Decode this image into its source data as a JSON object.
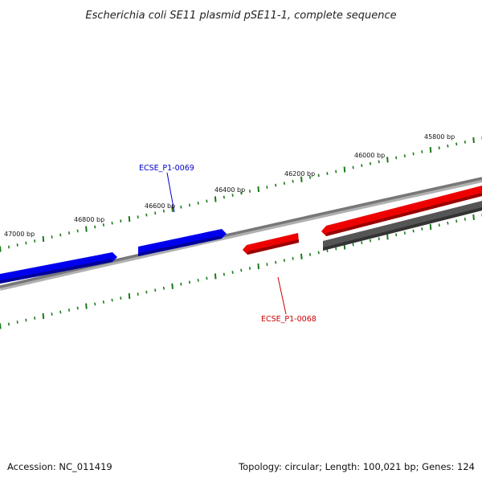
{
  "title": "Escherichia coli SE11 plasmid pSE11-1, complete sequence",
  "footer": {
    "accession": "Accession: NC_011419",
    "summary": "Topology: circular; Length: 100,021 bp; Genes: 124"
  },
  "scale_labels": [
    "47000 bp",
    "46800 bp",
    "46600 bp",
    "46400 bp",
    "46200 bp",
    "46000 bp",
    "45800 bp"
  ],
  "genes": [
    {
      "id": "ECSE_P1-0069",
      "color": "#0000cc"
    },
    {
      "id": "ECSE_P1-0068",
      "color": "#cc0000"
    }
  ],
  "colors": {
    "forward_strand": "#0000ff",
    "reverse_strand": "#ee0000",
    "other": "#555555",
    "backbone": "#777777",
    "ticks": "#1a7a1a"
  }
}
